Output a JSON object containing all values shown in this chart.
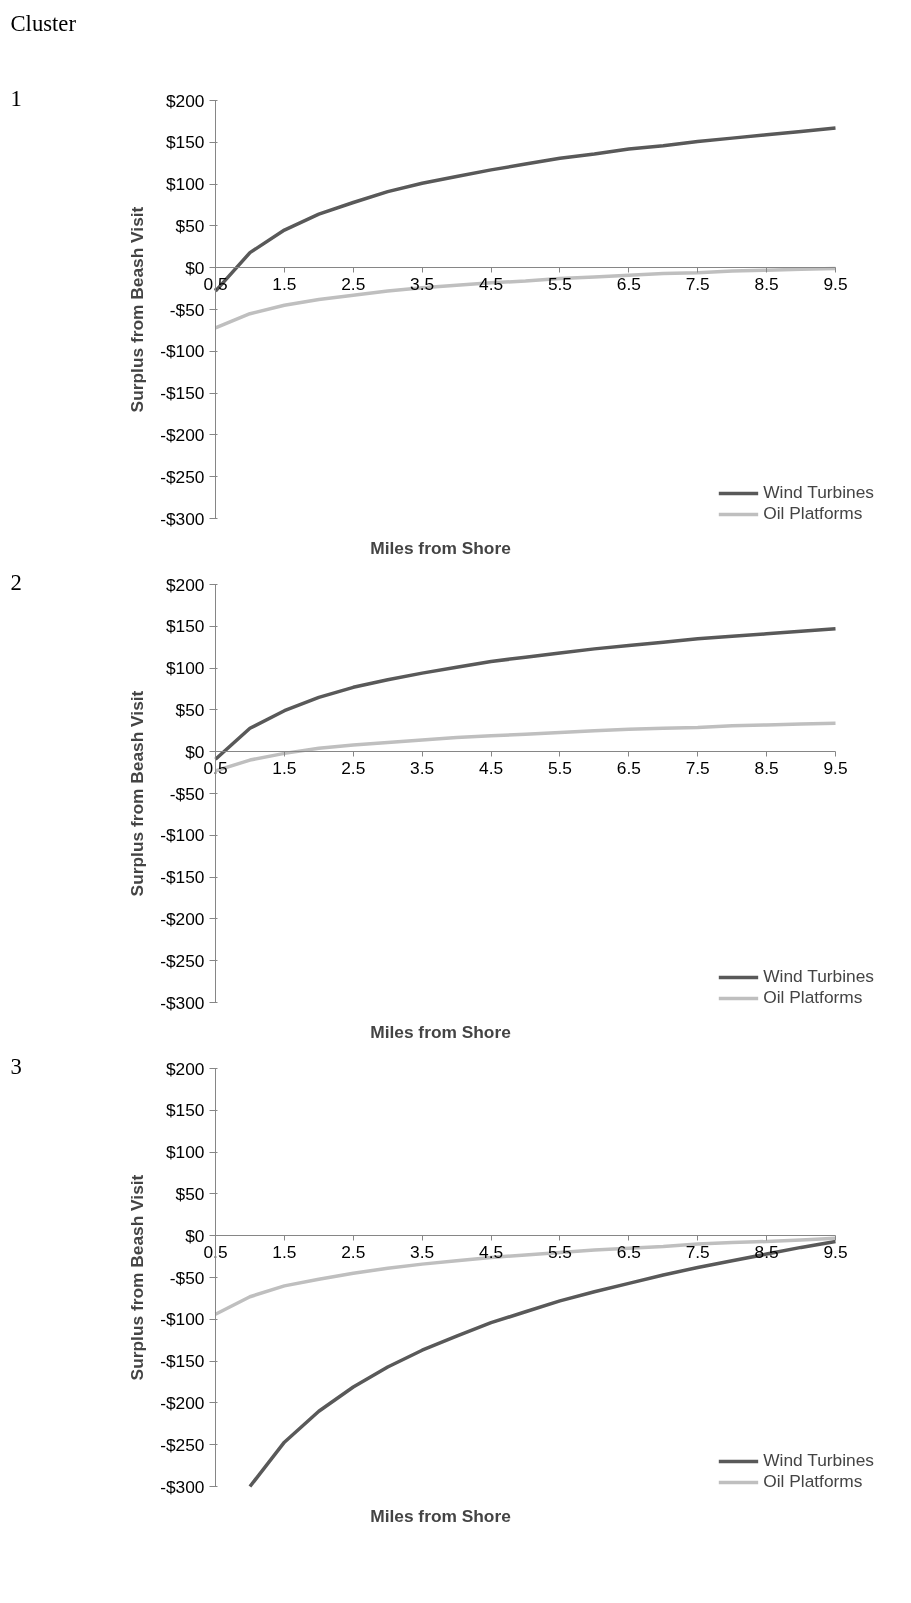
{
  "chart_data": [
    {
      "type": "line",
      "annotations": [
        "Cluster",
        "1"
      ],
      "xlabel": "Miles from Shore",
      "ylabel": "Surplus from Beash Visit",
      "x": [
        0.5,
        1,
        1.5,
        2,
        2.5,
        3,
        3.5,
        4,
        4.5,
        5,
        5.5,
        6,
        6.5,
        7,
        7.5,
        8,
        8.5,
        9,
        9.5
      ],
      "series": [
        {
          "name": "Wind Turbines",
          "color": "#595959",
          "values": [
            -28,
            18,
            45,
            64,
            78,
            91,
            101,
            109,
            117,
            124,
            131,
            136,
            142,
            146,
            151,
            155,
            159,
            163,
            167
          ]
        },
        {
          "name": "Oil Platforms",
          "color": "#bfbfbf",
          "values": [
            -72,
            -55,
            -45,
            -38,
            -33,
            -28,
            -24,
            -21,
            -18,
            -16,
            -13,
            -11,
            -9,
            -7,
            -6,
            -4,
            -3,
            -2,
            -1
          ]
        }
      ],
      "xlim": [
        0.5,
        9.5
      ],
      "xticks": [
        0.5,
        1.5,
        2.5,
        3.5,
        4.5,
        5.5,
        6.5,
        7.5,
        8.5,
        9.5
      ],
      "ylim": [
        -300,
        200
      ],
      "yticks": [
        {
          "value": -300,
          "label": "-$300"
        },
        {
          "value": -250,
          "label": "-$250"
        },
        {
          "value": -200,
          "label": "-$200"
        },
        {
          "value": -150,
          "label": "-$150"
        },
        {
          "value": -100,
          "label": "-$100"
        },
        {
          "value": -50,
          "label": "-$50"
        },
        {
          "value": 0,
          "label": "$0"
        },
        {
          "value": 50,
          "label": "$50"
        },
        {
          "value": 100,
          "label": "$100"
        },
        {
          "value": 150,
          "label": "$150"
        },
        {
          "value": 200,
          "label": "$200"
        }
      ],
      "grid": false,
      "legend": "bottom right",
      "marker": "none",
      "line_style": "solid"
    },
    {
      "type": "line",
      "annotations": [
        "2"
      ],
      "xlabel": "Miles from Shore",
      "ylabel": "Surplus from Beash Visit",
      "x": [
        0.5,
        1,
        1.5,
        2,
        2.5,
        3,
        3.5,
        4,
        4.5,
        5,
        5.5,
        6,
        6.5,
        7,
        7.5,
        8,
        8.5,
        9,
        9.5
      ],
      "series": [
        {
          "name": "Wind Turbines",
          "color": "#595959",
          "values": [
            -9,
            28,
            49,
            65,
            77,
            86,
            94,
            101,
            108,
            113,
            118,
            123,
            127,
            131,
            135,
            138,
            141,
            144,
            147
          ]
        },
        {
          "name": "Oil Platforms",
          "color": "#bfbfbf",
          "values": [
            -23,
            -10,
            -2,
            4,
            8,
            11,
            14,
            17,
            19,
            21,
            23,
            25,
            27,
            28,
            29,
            31,
            32,
            33,
            34
          ]
        }
      ],
      "xlim": [
        0.5,
        9.5
      ],
      "xticks": [
        0.5,
        1.5,
        2.5,
        3.5,
        4.5,
        5.5,
        6.5,
        7.5,
        8.5,
        9.5
      ],
      "ylim": [
        -300,
        200
      ],
      "yticks": [
        {
          "value": -300,
          "label": "-$300"
        },
        {
          "value": -250,
          "label": "-$250"
        },
        {
          "value": -200,
          "label": "-$200"
        },
        {
          "value": -150,
          "label": "-$150"
        },
        {
          "value": -100,
          "label": "-$100"
        },
        {
          "value": -50,
          "label": "-$50"
        },
        {
          "value": 0,
          "label": "$0"
        },
        {
          "value": 50,
          "label": "$50"
        },
        {
          "value": 100,
          "label": "$100"
        },
        {
          "value": 150,
          "label": "$150"
        },
        {
          "value": 200,
          "label": "$200"
        }
      ],
      "grid": false,
      "legend": "bottom right",
      "marker": "none",
      "line_style": "solid"
    },
    {
      "type": "line",
      "annotations": [
        "3"
      ],
      "xlabel": "Miles from Shore",
      "ylabel": "Surplus from Beash Visit",
      "x": [
        0.5,
        1,
        1.5,
        2,
        2.5,
        3,
        3.5,
        4,
        4.5,
        5,
        5.5,
        6,
        6.5,
        7,
        7.5,
        8,
        8.5,
        9,
        9.5
      ],
      "series": [
        {
          "name": "Wind Turbines",
          "color": "#595959",
          "values": [
            null,
            -300,
            -247,
            -210,
            -181,
            -157,
            -137,
            -120,
            -104,
            -91,
            -78,
            -67,
            -57,
            -47,
            -38,
            -30,
            -22,
            -14,
            -7
          ]
        },
        {
          "name": "Oil Platforms",
          "color": "#bfbfbf",
          "values": [
            -94,
            -73,
            -60,
            -52,
            -45,
            -39,
            -34,
            -30,
            -26,
            -23,
            -20,
            -17,
            -15,
            -13,
            -10,
            -8,
            -7,
            -5,
            -3
          ]
        }
      ],
      "xlim": [
        0.5,
        9.5
      ],
      "xticks": [
        0.5,
        1.5,
        2.5,
        3.5,
        4.5,
        5.5,
        6.5,
        7.5,
        8.5,
        9.5
      ],
      "ylim": [
        -300,
        200
      ],
      "yticks": [
        {
          "value": -300,
          "label": "-$300"
        },
        {
          "value": -250,
          "label": "-$250"
        },
        {
          "value": -200,
          "label": "-$200"
        },
        {
          "value": -150,
          "label": "-$150"
        },
        {
          "value": -100,
          "label": "-$100"
        },
        {
          "value": -50,
          "label": "-$50"
        },
        {
          "value": 0,
          "label": "$0"
        },
        {
          "value": 50,
          "label": "$50"
        },
        {
          "value": 100,
          "label": "$100"
        },
        {
          "value": 150,
          "label": "$150"
        },
        {
          "value": 200,
          "label": "$200"
        }
      ],
      "grid": false,
      "legend": "bottom right",
      "marker": "none",
      "line_style": "solid"
    }
  ]
}
